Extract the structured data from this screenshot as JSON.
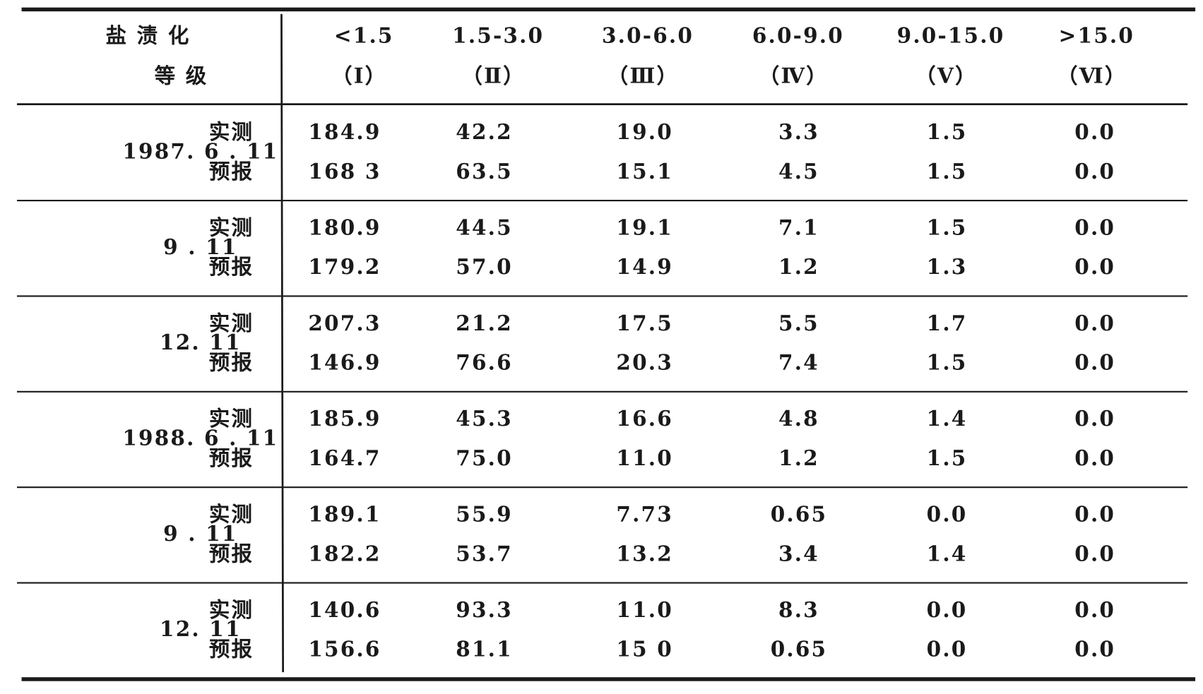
{
  "header": {
    "label": [
      "盐 渍 化",
      "等 级"
    ],
    "columns": [
      {
        "range": "<1.5",
        "grade": "（Ⅰ）"
      },
      {
        "range": "1.5-3.0",
        "grade": "（Ⅱ）"
      },
      {
        "range": "3.0-6.0",
        "grade": "（Ⅲ）"
      },
      {
        "range": "6.0-9.0",
        "grade": "（Ⅳ）"
      },
      {
        "range": "9.0-15.0",
        "grade": "（Ⅴ）"
      },
      {
        "range": ">15.0",
        "grade": "（Ⅵ）"
      }
    ]
  },
  "table": {
    "groups": [
      {
        "date": "1987. 6 . 11",
        "rows": [
          {
            "kind": "实测",
            "values": [
              "184.9",
              "42.2",
              "19.0",
              "3.3",
              "1.5",
              "0.0"
            ]
          },
          {
            "kind": "预报",
            "values": [
              "168 3",
              "63.5",
              "15.1",
              "4.5",
              "1.5",
              "0.0"
            ]
          }
        ]
      },
      {
        "date": "9 . 11",
        "rows": [
          {
            "kind": "实测",
            "values": [
              "180.9",
              "44.5",
              "19.1",
              "7.1",
              "1.5",
              "0.0"
            ]
          },
          {
            "kind": "预报",
            "values": [
              "179.2",
              "57.0",
              "14.9",
              "1.2",
              "1.3",
              "0.0"
            ]
          }
        ]
      },
      {
        "date": "12. 11",
        "rows": [
          {
            "kind": "实测",
            "values": [
              "207.3",
              "21.2",
              "17.5",
              "5.5",
              "1.7",
              "0.0"
            ]
          },
          {
            "kind": "预报",
            "values": [
              "146.9",
              "76.6",
              "20.3",
              "7.4",
              "1.5",
              "0.0"
            ]
          }
        ]
      },
      {
        "date": "1988. 6 . 11",
        "rows": [
          {
            "kind": "实测",
            "values": [
              "185.9",
              "45.3",
              "16.6",
              "4.8",
              "1.4",
              "0.0"
            ]
          },
          {
            "kind": "预报",
            "values": [
              "164.7",
              "75.0",
              "11.0",
              "1.2",
              "1.5",
              "0.0"
            ]
          }
        ]
      },
      {
        "date": "9 . 11",
        "rows": [
          {
            "kind": "实测",
            "values": [
              "189.1",
              "55.9",
              "7.73",
              "0.65",
              "0.0",
              "0.0"
            ]
          },
          {
            "kind": "预报",
            "values": [
              "182.2",
              "53.7",
              "13.2",
              "3.4",
              "1.4",
              "0.0"
            ]
          }
        ]
      },
      {
        "date": "12. 11",
        "rows": [
          {
            "kind": "实测",
            "values": [
              "140.6",
              "93.3",
              "11.0",
              "8.3",
              "0.0",
              "0.0"
            ]
          },
          {
            "kind": "预报",
            "values": [
              "156.6",
              "81.1",
              "15 0",
              "0.65",
              "0.0",
              "0.0"
            ]
          }
        ]
      }
    ]
  }
}
